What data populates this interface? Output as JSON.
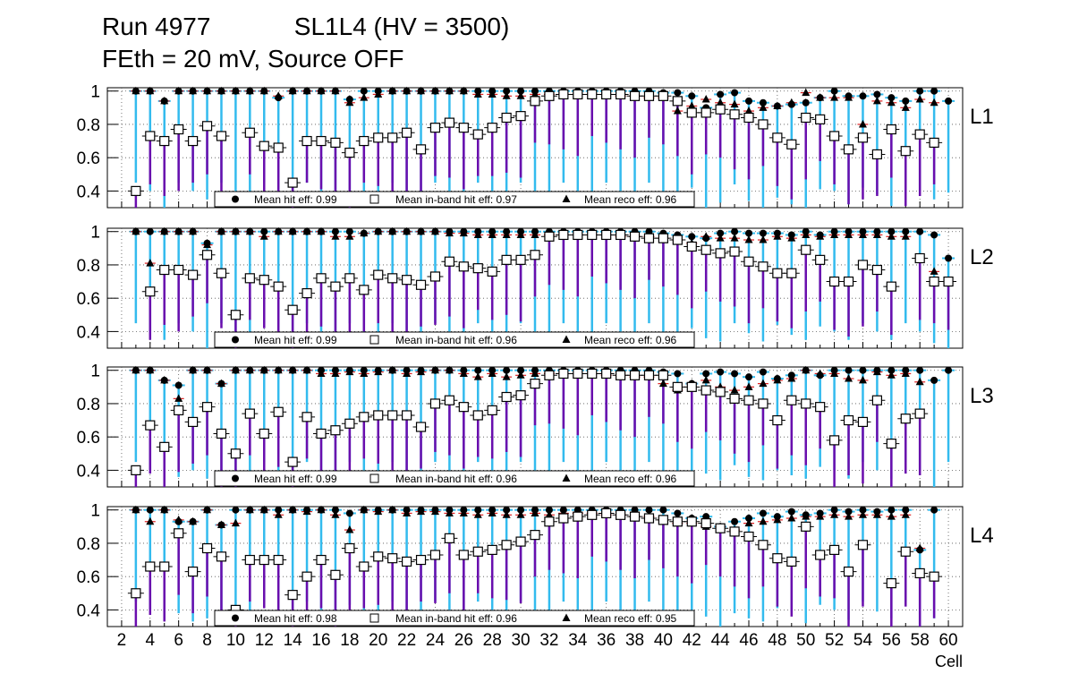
{
  "header": {
    "run": "Run 4977",
    "layer_hv": "SL1L4 (HV = 3500)",
    "conditions": "FEth = 20 mV, Source OFF"
  },
  "colors": {
    "hit_eff": "#000000",
    "inband_err": "#6a0dad",
    "range_err": "#33bbee",
    "reco_err": "#dd2222",
    "frame": "#000000",
    "grid": "#555555"
  },
  "chart_data": {
    "type": "scatter",
    "xlabel": "Cell",
    "xlim": [
      1,
      61
    ],
    "ylim": [
      0.3,
      1.02
    ],
    "x_ticks": [
      2,
      4,
      6,
      8,
      10,
      12,
      14,
      16,
      18,
      20,
      22,
      24,
      26,
      28,
      30,
      32,
      34,
      36,
      38,
      40,
      42,
      44,
      46,
      48,
      50,
      52,
      54,
      56,
      58,
      60
    ],
    "y_ticks": [
      0.4,
      0.6,
      0.8,
      1
    ],
    "cells": [
      3,
      4,
      5,
      6,
      7,
      8,
      9,
      10,
      11,
      12,
      13,
      14,
      15,
      16,
      17,
      18,
      19,
      20,
      21,
      22,
      23,
      24,
      25,
      26,
      27,
      28,
      29,
      30,
      31,
      32,
      33,
      34,
      35,
      36,
      37,
      38,
      39,
      40,
      41,
      42,
      43,
      44,
      45,
      46,
      47,
      48,
      49,
      50,
      51,
      52,
      53,
      54,
      55,
      56,
      57,
      58,
      59,
      60
    ],
    "legend": {
      "hit": "Mean hit  eff: {v}",
      "inband": "Mean in-band hit eff: {v}",
      "reco": "Mean reco eff: {v}"
    },
    "panels": [
      {
        "label": "L1",
        "mean_hit": "0.99",
        "mean_inband": "0.97",
        "mean_reco": "0.96",
        "hit": [
          1,
          1,
          0.94,
          1,
          1,
          1,
          1,
          1,
          1,
          1,
          0.96,
          1,
          1,
          1,
          1,
          0.95,
          1,
          1,
          1,
          1,
          1,
          1,
          1,
          1,
          1,
          1,
          1,
          1,
          1,
          1,
          1,
          1,
          1,
          1,
          1,
          1,
          1,
          0.99,
          0.99,
          0.97,
          0.9,
          0.98,
          0.99,
          0.94,
          0.93,
          0.91,
          0.92,
          0.93,
          0.96,
          1,
          0.97,
          0.97,
          0.98,
          0.96,
          0.94,
          1,
          1,
          0.94
        ],
        "inband": [
          0.4,
          0.73,
          0.7,
          0.77,
          0.7,
          0.79,
          0.73,
          null,
          0.75,
          0.67,
          0.66,
          0.45,
          0.7,
          0.7,
          0.69,
          0.63,
          0.7,
          0.72,
          0.72,
          0.75,
          0.65,
          0.78,
          0.81,
          0.78,
          0.74,
          0.78,
          0.84,
          0.85,
          0.94,
          0.97,
          0.98,
          0.98,
          0.98,
          0.98,
          0.98,
          0.97,
          0.97,
          0.97,
          0.94,
          0.87,
          0.87,
          0.89,
          0.86,
          0.84,
          0.8,
          0.72,
          0.68,
          0.84,
          0.83,
          0.73,
          0.65,
          0.72,
          0.62,
          0.77,
          0.64,
          0.74,
          0.69,
          null
        ],
        "reco": [
          1,
          1,
          0.94,
          1,
          1,
          1,
          1,
          1,
          1,
          1,
          0.97,
          1,
          1,
          1,
          1,
          0.93,
          0.96,
          0.98,
          1,
          1,
          1,
          1,
          1,
          1,
          0.98,
          0.98,
          0.97,
          0.97,
          0.98,
          0.98,
          0.98,
          0.98,
          0.98,
          0.98,
          0.97,
          0.97,
          0.96,
          0.96,
          0.88,
          0.91,
          0.95,
          0.93,
          0.92,
          0.88,
          0.9,
          0.91,
          0.93,
          0.99,
          0.96,
          0.96,
          0.96,
          0.8,
          0.94,
          0.93,
          0.9,
          0.95,
          0.93,
          null
        ]
      },
      {
        "label": "L2",
        "mean_hit": "0.99",
        "mean_inband": "0.96",
        "mean_reco": "0.96",
        "hit": [
          1,
          1,
          1,
          1,
          1,
          0.93,
          1,
          1,
          1,
          1,
          1,
          1,
          1,
          1,
          1,
          1,
          0.99,
          1,
          1,
          1,
          1,
          1,
          1,
          1,
          1,
          1,
          1,
          1,
          1,
          1,
          1,
          1,
          1,
          1,
          1,
          1,
          1,
          0.99,
          0.98,
          0.97,
          0.96,
          0.99,
          1,
          0.99,
          0.99,
          0.99,
          0.98,
          1,
          0.98,
          1,
          1,
          1,
          1,
          1,
          1,
          1,
          0.98,
          0.84
        ],
        "inband": [
          null,
          0.64,
          0.77,
          0.77,
          0.74,
          0.86,
          0.75,
          0.5,
          0.72,
          0.71,
          0.67,
          0.53,
          0.63,
          0.72,
          0.67,
          0.72,
          0.65,
          0.74,
          0.72,
          0.71,
          0.68,
          0.73,
          0.82,
          0.79,
          0.78,
          0.76,
          0.83,
          0.83,
          0.86,
          0.97,
          0.98,
          0.98,
          0.98,
          0.98,
          0.98,
          0.97,
          0.96,
          0.96,
          0.95,
          0.91,
          0.89,
          0.87,
          0.88,
          0.82,
          0.79,
          0.75,
          0.75,
          0.89,
          0.83,
          0.7,
          0.7,
          0.8,
          0.77,
          0.67,
          null,
          0.84,
          0.7,
          0.7
        ],
        "reco": [
          1,
          0.81,
          1,
          1,
          1,
          0.92,
          1,
          1,
          1,
          0.97,
          1,
          1,
          1,
          1,
          0.97,
          0.97,
          0.99,
          1,
          1,
          1,
          1,
          1,
          0.99,
          0.99,
          0.98,
          0.98,
          0.98,
          0.98,
          0.98,
          0.98,
          0.98,
          0.98,
          0.98,
          0.98,
          0.97,
          0.97,
          0.97,
          0.96,
          0.95,
          0.93,
          0.97,
          0.96,
          0.96,
          0.95,
          0.95,
          0.97,
          0.96,
          0.98,
          0.97,
          0.98,
          0.98,
          0.98,
          0.98,
          0.97,
          0.97,
          0.84,
          0.76,
          null
        ]
      },
      {
        "label": "L3",
        "mean_hit": "0.99",
        "mean_inband": "0.96",
        "mean_reco": "0.96",
        "hit": [
          1,
          1,
          0.94,
          0.91,
          1,
          1,
          0.92,
          1,
          1,
          1,
          1,
          1,
          1,
          1,
          1,
          1,
          1,
          1,
          1,
          1,
          1,
          1,
          1,
          1,
          1,
          1,
          1,
          1,
          1,
          1,
          1,
          1,
          1,
          1,
          1,
          1,
          1,
          0.99,
          0.98,
          0.92,
          0.98,
          0.99,
          0.98,
          0.96,
          0.99,
          0.95,
          0.97,
          1,
          0.97,
          1,
          1,
          1,
          1,
          1,
          1,
          1,
          0.94,
          1
        ],
        "inband": [
          0.4,
          0.67,
          0.54,
          0.76,
          0.69,
          0.78,
          0.62,
          0.5,
          0.74,
          0.62,
          0.75,
          0.45,
          0.72,
          0.62,
          0.64,
          0.68,
          0.72,
          0.73,
          0.73,
          0.73,
          0.66,
          0.8,
          0.82,
          0.78,
          0.73,
          0.76,
          0.84,
          0.85,
          0.92,
          0.97,
          0.98,
          0.98,
          0.98,
          0.98,
          0.97,
          0.97,
          0.97,
          0.97,
          0.9,
          0.9,
          0.88,
          0.87,
          0.83,
          0.82,
          0.8,
          0.7,
          0.82,
          0.8,
          0.78,
          0.58,
          0.7,
          0.69,
          0.82,
          0.56,
          0.71,
          0.74,
          null,
          null
        ],
        "reco": [
          1,
          1,
          0.94,
          0.83,
          1,
          1,
          0.92,
          1,
          1,
          1,
          1,
          1,
          1,
          0.98,
          0.98,
          0.99,
          0.98,
          0.99,
          1,
          0.98,
          0.99,
          1,
          1,
          0.98,
          0.96,
          0.98,
          0.96,
          0.97,
          0.98,
          0.98,
          0.98,
          0.98,
          0.98,
          0.97,
          0.97,
          0.96,
          0.96,
          0.92,
          0.88,
          0.92,
          0.94,
          0.9,
          0.88,
          0.9,
          0.92,
          0.94,
          0.95,
          1,
          0.98,
          0.98,
          0.95,
          0.94,
          0.99,
          0.97,
          0.98,
          0.93,
          null,
          null
        ]
      },
      {
        "label": "L4",
        "mean_hit": "0.98",
        "mean_inband": "0.96",
        "mean_reco": "0.95",
        "hit": [
          1,
          1,
          1,
          0.93,
          0.93,
          1,
          0.91,
          1,
          1,
          1,
          1,
          1,
          1,
          1,
          1,
          0.98,
          1,
          1,
          1,
          1,
          1,
          1,
          1,
          1,
          1,
          1,
          1,
          1,
          1,
          1,
          1,
          1,
          1,
          1,
          1,
          1,
          1,
          1,
          0.98,
          0.95,
          0.96,
          0.9,
          0.93,
          0.95,
          0.98,
          0.96,
          0.99,
          0.97,
          0.98,
          1,
          0.99,
          1,
          0.99,
          1,
          1,
          0.76,
          1,
          null
        ],
        "inband": [
          0.5,
          0.66,
          0.66,
          0.86,
          0.63,
          0.77,
          0.72,
          0.4,
          0.7,
          0.7,
          0.7,
          0.49,
          0.6,
          0.7,
          0.61,
          0.77,
          0.66,
          0.72,
          0.71,
          0.69,
          0.7,
          0.73,
          0.83,
          0.73,
          0.75,
          0.76,
          0.79,
          0.81,
          0.85,
          0.93,
          0.95,
          0.96,
          0.97,
          0.98,
          0.97,
          0.96,
          0.95,
          0.94,
          0.93,
          0.93,
          0.92,
          0.89,
          0.87,
          0.84,
          0.79,
          0.71,
          0.69,
          0.9,
          0.73,
          0.76,
          0.63,
          0.79,
          null,
          0.56,
          0.75,
          0.62,
          0.6,
          null
        ],
        "reco": [
          1,
          0.93,
          1,
          0.94,
          0.93,
          1,
          0.91,
          0.92,
          1,
          1,
          0.97,
          1,
          0.99,
          1,
          0.97,
          0.88,
          1,
          0.99,
          1,
          0.98,
          0.99,
          0.99,
          0.98,
          0.98,
          0.97,
          0.98,
          0.97,
          0.97,
          0.98,
          0.97,
          0.98,
          0.98,
          0.98,
          0.97,
          0.97,
          0.96,
          0.96,
          0.94,
          0.92,
          0.92,
          0.9,
          0.9,
          0.88,
          0.92,
          0.93,
          0.94,
          0.95,
          0.96,
          0.96,
          0.97,
          0.96,
          0.97,
          0.97,
          0.96,
          0.97,
          0.77,
          null,
          null
        ]
      }
    ]
  }
}
